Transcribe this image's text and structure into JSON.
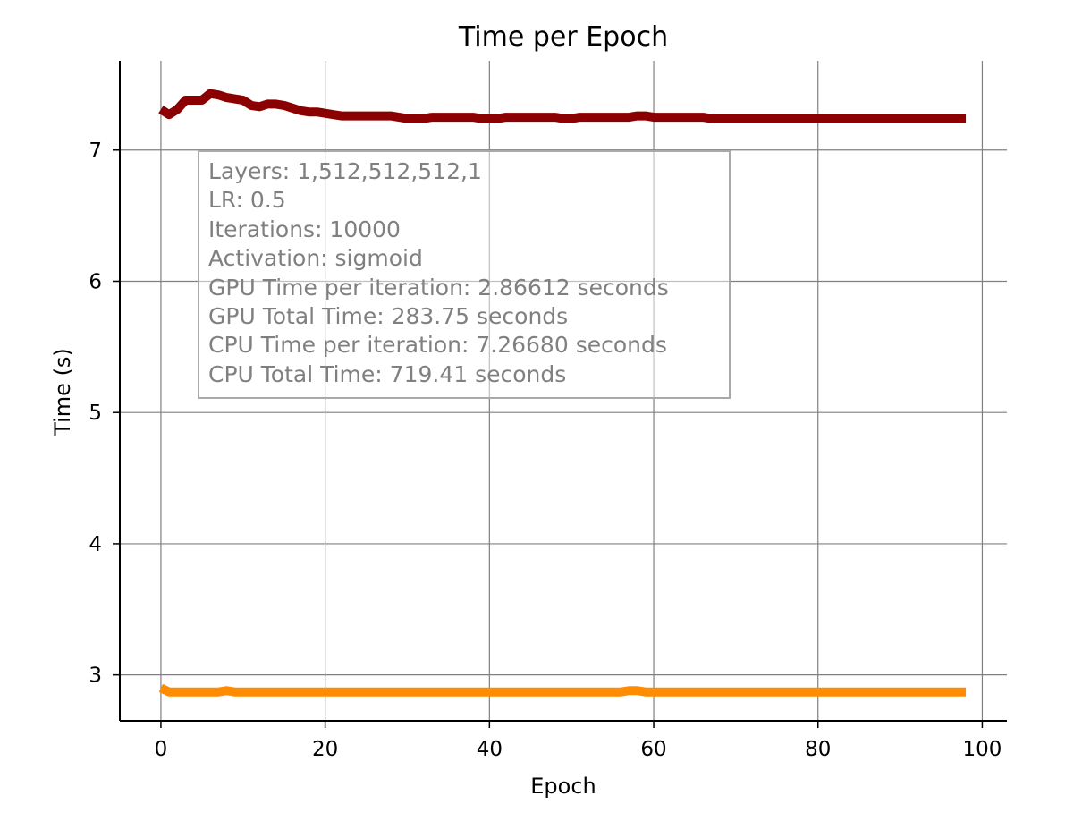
{
  "chart_data": {
    "type": "line",
    "title": "Time per Epoch",
    "xlabel": "Epoch",
    "ylabel": "Time (s)",
    "xlim": [
      -5,
      103
    ],
    "ylim": [
      2.65,
      7.68
    ],
    "xticks": [
      0,
      20,
      40,
      60,
      80,
      100
    ],
    "yticks": [
      3,
      4,
      5,
      6,
      7
    ],
    "grid": true,
    "legend": "none",
    "series": [
      {
        "color": "#8b0000",
        "x": [
          0,
          1,
          2,
          3,
          4,
          5,
          6,
          7,
          8,
          9,
          10,
          11,
          12,
          13,
          14,
          15,
          16,
          17,
          18,
          19,
          20,
          21,
          22,
          23,
          24,
          25,
          26,
          27,
          28,
          29,
          30,
          31,
          32,
          33,
          34,
          35,
          36,
          37,
          38,
          39,
          40,
          41,
          42,
          43,
          44,
          45,
          46,
          47,
          48,
          49,
          50,
          51,
          52,
          53,
          54,
          55,
          56,
          57,
          58,
          59,
          60,
          61,
          62,
          63,
          64,
          65,
          66,
          67,
          68,
          69,
          70,
          71,
          72,
          73,
          74,
          75,
          76,
          77,
          78,
          79,
          80,
          81,
          82,
          83,
          84,
          85,
          86,
          87,
          88,
          89,
          90,
          91,
          92,
          93,
          94,
          95,
          96,
          97,
          98
        ],
        "y": [
          7.31,
          7.27,
          7.31,
          7.38,
          7.38,
          7.38,
          7.43,
          7.42,
          7.4,
          7.39,
          7.38,
          7.34,
          7.33,
          7.35,
          7.35,
          7.34,
          7.32,
          7.3,
          7.29,
          7.29,
          7.28,
          7.27,
          7.26,
          7.26,
          7.26,
          7.26,
          7.26,
          7.26,
          7.26,
          7.25,
          7.24,
          7.24,
          7.24,
          7.25,
          7.25,
          7.25,
          7.25,
          7.25,
          7.25,
          7.24,
          7.24,
          7.24,
          7.25,
          7.25,
          7.25,
          7.25,
          7.25,
          7.25,
          7.25,
          7.24,
          7.24,
          7.25,
          7.25,
          7.25,
          7.25,
          7.25,
          7.25,
          7.25,
          7.26,
          7.26,
          7.25,
          7.25,
          7.25,
          7.25,
          7.25,
          7.25,
          7.25,
          7.24,
          7.24,
          7.24,
          7.24,
          7.24,
          7.24,
          7.24,
          7.24,
          7.24,
          7.24,
          7.24,
          7.24,
          7.24,
          7.24,
          7.24,
          7.24,
          7.24,
          7.24,
          7.24,
          7.24,
          7.24,
          7.24,
          7.24,
          7.24,
          7.24,
          7.24,
          7.24,
          7.24,
          7.24,
          7.24,
          7.24,
          7.24
        ]
      },
      {
        "color": "#ff8c00",
        "x": [
          0,
          1,
          2,
          3,
          4,
          5,
          6,
          7,
          8,
          9,
          10,
          11,
          12,
          13,
          14,
          15,
          16,
          17,
          18,
          19,
          20,
          21,
          22,
          23,
          24,
          25,
          26,
          27,
          28,
          29,
          30,
          31,
          32,
          33,
          34,
          35,
          36,
          37,
          38,
          39,
          40,
          41,
          42,
          43,
          44,
          45,
          46,
          47,
          48,
          49,
          50,
          51,
          52,
          53,
          54,
          55,
          56,
          57,
          58,
          59,
          60,
          61,
          62,
          63,
          64,
          65,
          66,
          67,
          68,
          69,
          70,
          71,
          72,
          73,
          74,
          75,
          76,
          77,
          78,
          79,
          80,
          81,
          82,
          83,
          84,
          85,
          86,
          87,
          88,
          89,
          90,
          91,
          92,
          93,
          94,
          95,
          96,
          97,
          98
        ],
        "y": [
          2.9,
          2.87,
          2.87,
          2.87,
          2.87,
          2.87,
          2.87,
          2.87,
          2.88,
          2.87,
          2.87,
          2.87,
          2.87,
          2.87,
          2.87,
          2.87,
          2.87,
          2.87,
          2.87,
          2.87,
          2.87,
          2.87,
          2.87,
          2.87,
          2.87,
          2.87,
          2.87,
          2.87,
          2.87,
          2.87,
          2.87,
          2.87,
          2.87,
          2.87,
          2.87,
          2.87,
          2.87,
          2.87,
          2.87,
          2.87,
          2.87,
          2.87,
          2.87,
          2.87,
          2.87,
          2.87,
          2.87,
          2.87,
          2.87,
          2.87,
          2.87,
          2.87,
          2.87,
          2.87,
          2.87,
          2.87,
          2.87,
          2.88,
          2.88,
          2.87,
          2.87,
          2.87,
          2.87,
          2.87,
          2.87,
          2.87,
          2.87,
          2.87,
          2.87,
          2.87,
          2.87,
          2.87,
          2.87,
          2.87,
          2.87,
          2.87,
          2.87,
          2.87,
          2.87,
          2.87,
          2.87,
          2.87,
          2.87,
          2.87,
          2.87,
          2.87,
          2.87,
          2.87,
          2.87,
          2.87,
          2.87,
          2.87,
          2.87,
          2.87,
          2.87,
          2.87,
          2.87,
          2.87,
          2.87
        ]
      }
    ],
    "annotation": {
      "lines": [
        "Layers: 1,512,512,512,1",
        "LR: 0.5",
        "Iterations: 10000",
        "Activation: sigmoid",
        "GPU Time per iteration: 2.86612 seconds",
        "GPU Total Time: 283.75 seconds",
        "CPU Time per iteration: 7.26680 seconds",
        "CPU Total Time: 719.41 seconds"
      ]
    },
    "colors": {
      "grid": "#808080",
      "axis": "#000000",
      "annotation_text": "#808080",
      "annotation_border": "#a9a9a9"
    }
  }
}
